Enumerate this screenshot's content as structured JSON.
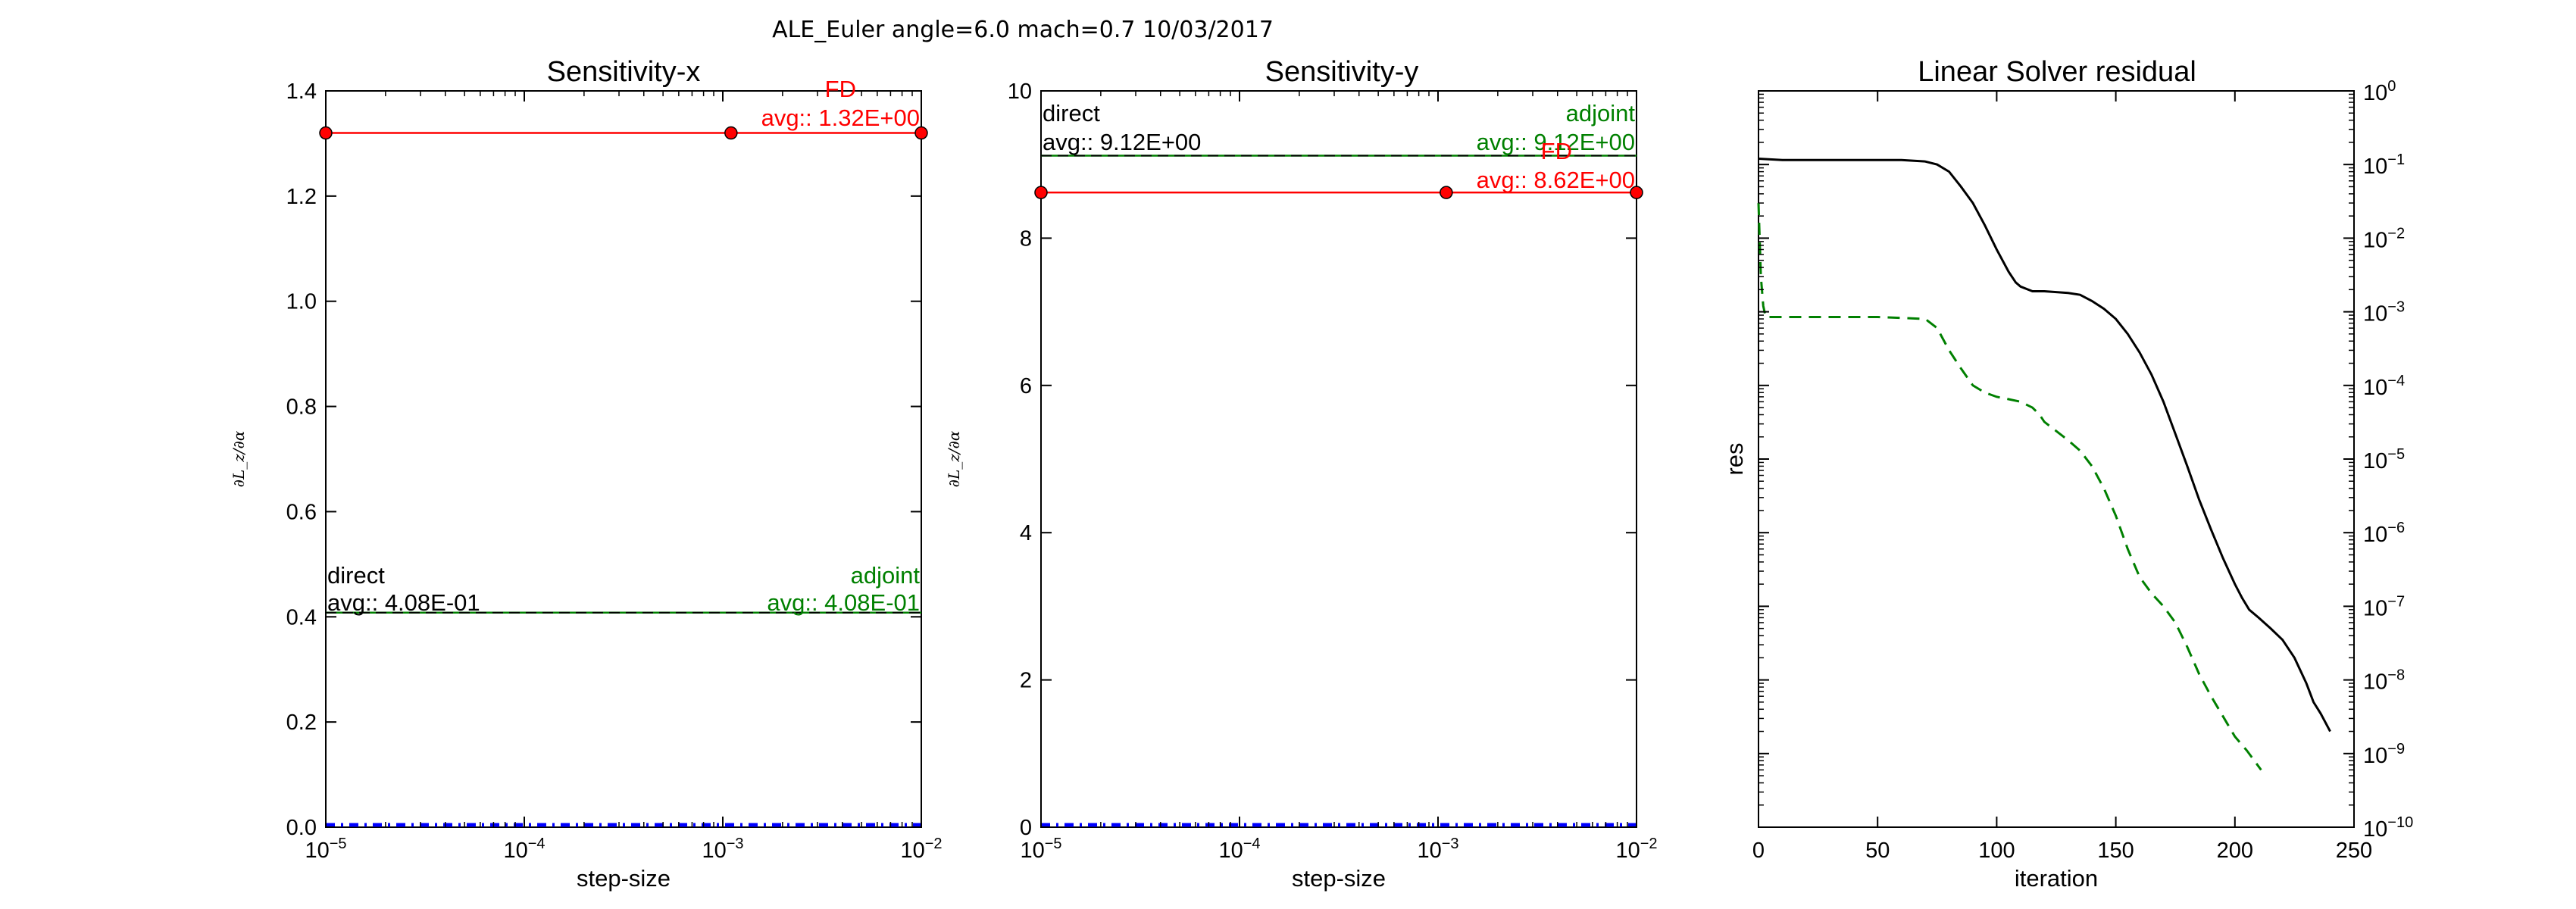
{
  "suptitle": "ALE_Euler  angle=6.0 mach=0.7 10/03/2017",
  "colors": {
    "fd": "#ff0000",
    "adjoint": "#008000",
    "direct": "#000000",
    "blue": "#0000ff"
  },
  "chart_data": [
    {
      "type": "line",
      "title": "Sensitivity-x",
      "xlabel": "step-size",
      "ylabel": "∂L_z/∂α",
      "xscale": "log",
      "xlim": [
        1e-05,
        0.01
      ],
      "ylim": [
        0,
        1.4
      ],
      "xticks": [
        1e-05,
        0.0001,
        0.001,
        0.01
      ],
      "xtick_labels": [
        [
          "10",
          "−5"
        ],
        [
          "10",
          "−4"
        ],
        [
          "10",
          "−3"
        ],
        [
          "10",
          "−2"
        ]
      ],
      "yticks": [
        0,
        0.2,
        0.4,
        0.6,
        0.8,
        1.0,
        1.2,
        1.4
      ],
      "ytick_labels": [
        "0.0",
        "0.2",
        "0.4",
        "0.6",
        "0.8",
        "1.0",
        "1.2",
        "1.4"
      ],
      "series": [
        {
          "name": "FD",
          "style": "fd",
          "x": [
            1e-05,
            0.0011,
            0.01
          ],
          "y": [
            1.32,
            1.32,
            1.32
          ]
        },
        {
          "name": "adjoint",
          "style": "adjoint",
          "x": [
            1e-05,
            0.01
          ],
          "y": [
            0.408,
            0.408
          ]
        },
        {
          "name": "direct",
          "style": "direct",
          "x": [
            1e-05,
            0.01
          ],
          "y": [
            0.408,
            0.408
          ]
        }
      ],
      "annotations": [
        {
          "style": "fd",
          "lines": [
            "FD",
            "avg:: 1.32E+00"
          ]
        },
        {
          "style": "adjoint",
          "lines": [
            "adjoint",
            "avg:: 4.08E-01"
          ]
        },
        {
          "style": "direct",
          "lines": [
            "direct",
            "avg:: 4.08E-01"
          ]
        }
      ]
    },
    {
      "type": "line",
      "title": "Sensitivity-y",
      "xlabel": "step-size",
      "ylabel": "∂L_z/∂α",
      "xscale": "log",
      "xlim": [
        1e-05,
        0.01
      ],
      "ylim": [
        0,
        10
      ],
      "xticks": [
        1e-05,
        0.0001,
        0.001,
        0.01
      ],
      "xtick_labels": [
        [
          "10",
          "−5"
        ],
        [
          "10",
          "−4"
        ],
        [
          "10",
          "−3"
        ],
        [
          "10",
          "−2"
        ]
      ],
      "yticks": [
        0,
        2,
        4,
        6,
        8,
        10
      ],
      "ytick_labels": [
        "0",
        "2",
        "4",
        "6",
        "8",
        "10"
      ],
      "series": [
        {
          "name": "FD",
          "style": "fd",
          "x": [
            1e-05,
            0.0011,
            0.01
          ],
          "y": [
            8.62,
            8.62,
            8.62
          ]
        },
        {
          "name": "adjoint",
          "style": "adjoint",
          "x": [
            1e-05,
            0.01
          ],
          "y": [
            9.12,
            9.12
          ]
        },
        {
          "name": "direct",
          "style": "direct",
          "x": [
            1e-05,
            0.01
          ],
          "y": [
            9.12,
            9.12
          ]
        }
      ],
      "annotations": [
        {
          "style": "direct",
          "lines": [
            "direct",
            "avg:: 9.12E+00"
          ]
        },
        {
          "style": "adjoint",
          "lines": [
            "adjoint",
            "avg:: 9.12E+00"
          ]
        },
        {
          "style": "fd",
          "lines": [
            "FD",
            "avg:: 8.62E+00"
          ]
        }
      ]
    },
    {
      "type": "line",
      "title": "Linear Solver residual",
      "xlabel": "iteration",
      "ylabel": "res",
      "yscale": "log",
      "yaxis_side": "right",
      "xlim": [
        0,
        250
      ],
      "ylim": [
        1e-10,
        1
      ],
      "xticks": [
        0,
        50,
        100,
        150,
        200,
        250
      ],
      "xtick_labels": [
        "0",
        "50",
        "100",
        "150",
        "200",
        "250"
      ],
      "yticks": [
        -10,
        -9,
        -8,
        -7,
        -6,
        -5,
        -4,
        -3,
        -2,
        -1,
        0
      ],
      "ytick_labels": [
        [
          "10",
          "−10"
        ],
        [
          "10",
          "−9"
        ],
        [
          "10",
          "−8"
        ],
        [
          "10",
          "−7"
        ],
        [
          "10",
          "−6"
        ],
        [
          "10",
          "−5"
        ],
        [
          "10",
          "−4"
        ],
        [
          "10",
          "−3"
        ],
        [
          "10",
          "−2"
        ],
        [
          "10",
          "−1"
        ],
        [
          "10",
          "0"
        ]
      ],
      "series": [
        {
          "style": "direct",
          "x": [
            0,
            10,
            40,
            60,
            70,
            75,
            80,
            85,
            90,
            95,
            100,
            105,
            108,
            110,
            115,
            120,
            130,
            135,
            140,
            145,
            150,
            155,
            160,
            165,
            170,
            175,
            180,
            185,
            190,
            195,
            200,
            203,
            206,
            210,
            215,
            220,
            225,
            230,
            233,
            236,
            240
          ],
          "y": [
            0.12,
            0.115,
            0.115,
            0.115,
            0.11,
            0.1,
            0.08,
            0.05,
            0.03,
            0.015,
            0.007,
            0.0035,
            0.0025,
            0.0022,
            0.0019,
            0.0019,
            0.0018,
            0.0017,
            0.0014,
            0.0011,
            0.0008,
            0.0005,
            0.00028,
            0.00014,
            6e-05,
            2.2e-05,
            8e-06,
            2.8e-06,
            1.1e-06,
            4.5e-07,
            2e-07,
            1.3e-07,
            9e-08,
            7e-08,
            5e-08,
            3.5e-08,
            2e-08,
            9e-09,
            5e-09,
            3.5e-09,
            2e-09
          ]
        },
        {
          "style": "adjoint",
          "x": [
            0,
            1,
            2,
            3,
            10,
            50,
            70,
            75,
            80,
            85,
            90,
            95,
            100,
            105,
            110,
            115,
            118,
            120,
            125,
            130,
            135,
            140,
            145,
            150,
            155,
            160,
            165,
            170,
            175,
            180,
            185,
            190,
            195,
            200,
            205,
            211
          ],
          "y": [
            0.03,
            0.003,
            0.0012,
            0.00085,
            0.00085,
            0.00085,
            0.0008,
            0.0006,
            0.0003,
            0.00017,
            0.0001,
            8e-05,
            7e-05,
            6.5e-05,
            6e-05,
            5e-05,
            4e-05,
            3.2e-05,
            2.4e-05,
            1.8e-05,
            1.3e-05,
            8e-06,
            4e-06,
            1.7e-06,
            6e-07,
            2.5e-07,
            1.5e-07,
            1e-07,
            6e-08,
            2.8e-08,
            1.2e-08,
            6e-09,
            3.2e-09,
            1.7e-09,
            1.1e-09,
            6e-10
          ]
        }
      ]
    }
  ]
}
